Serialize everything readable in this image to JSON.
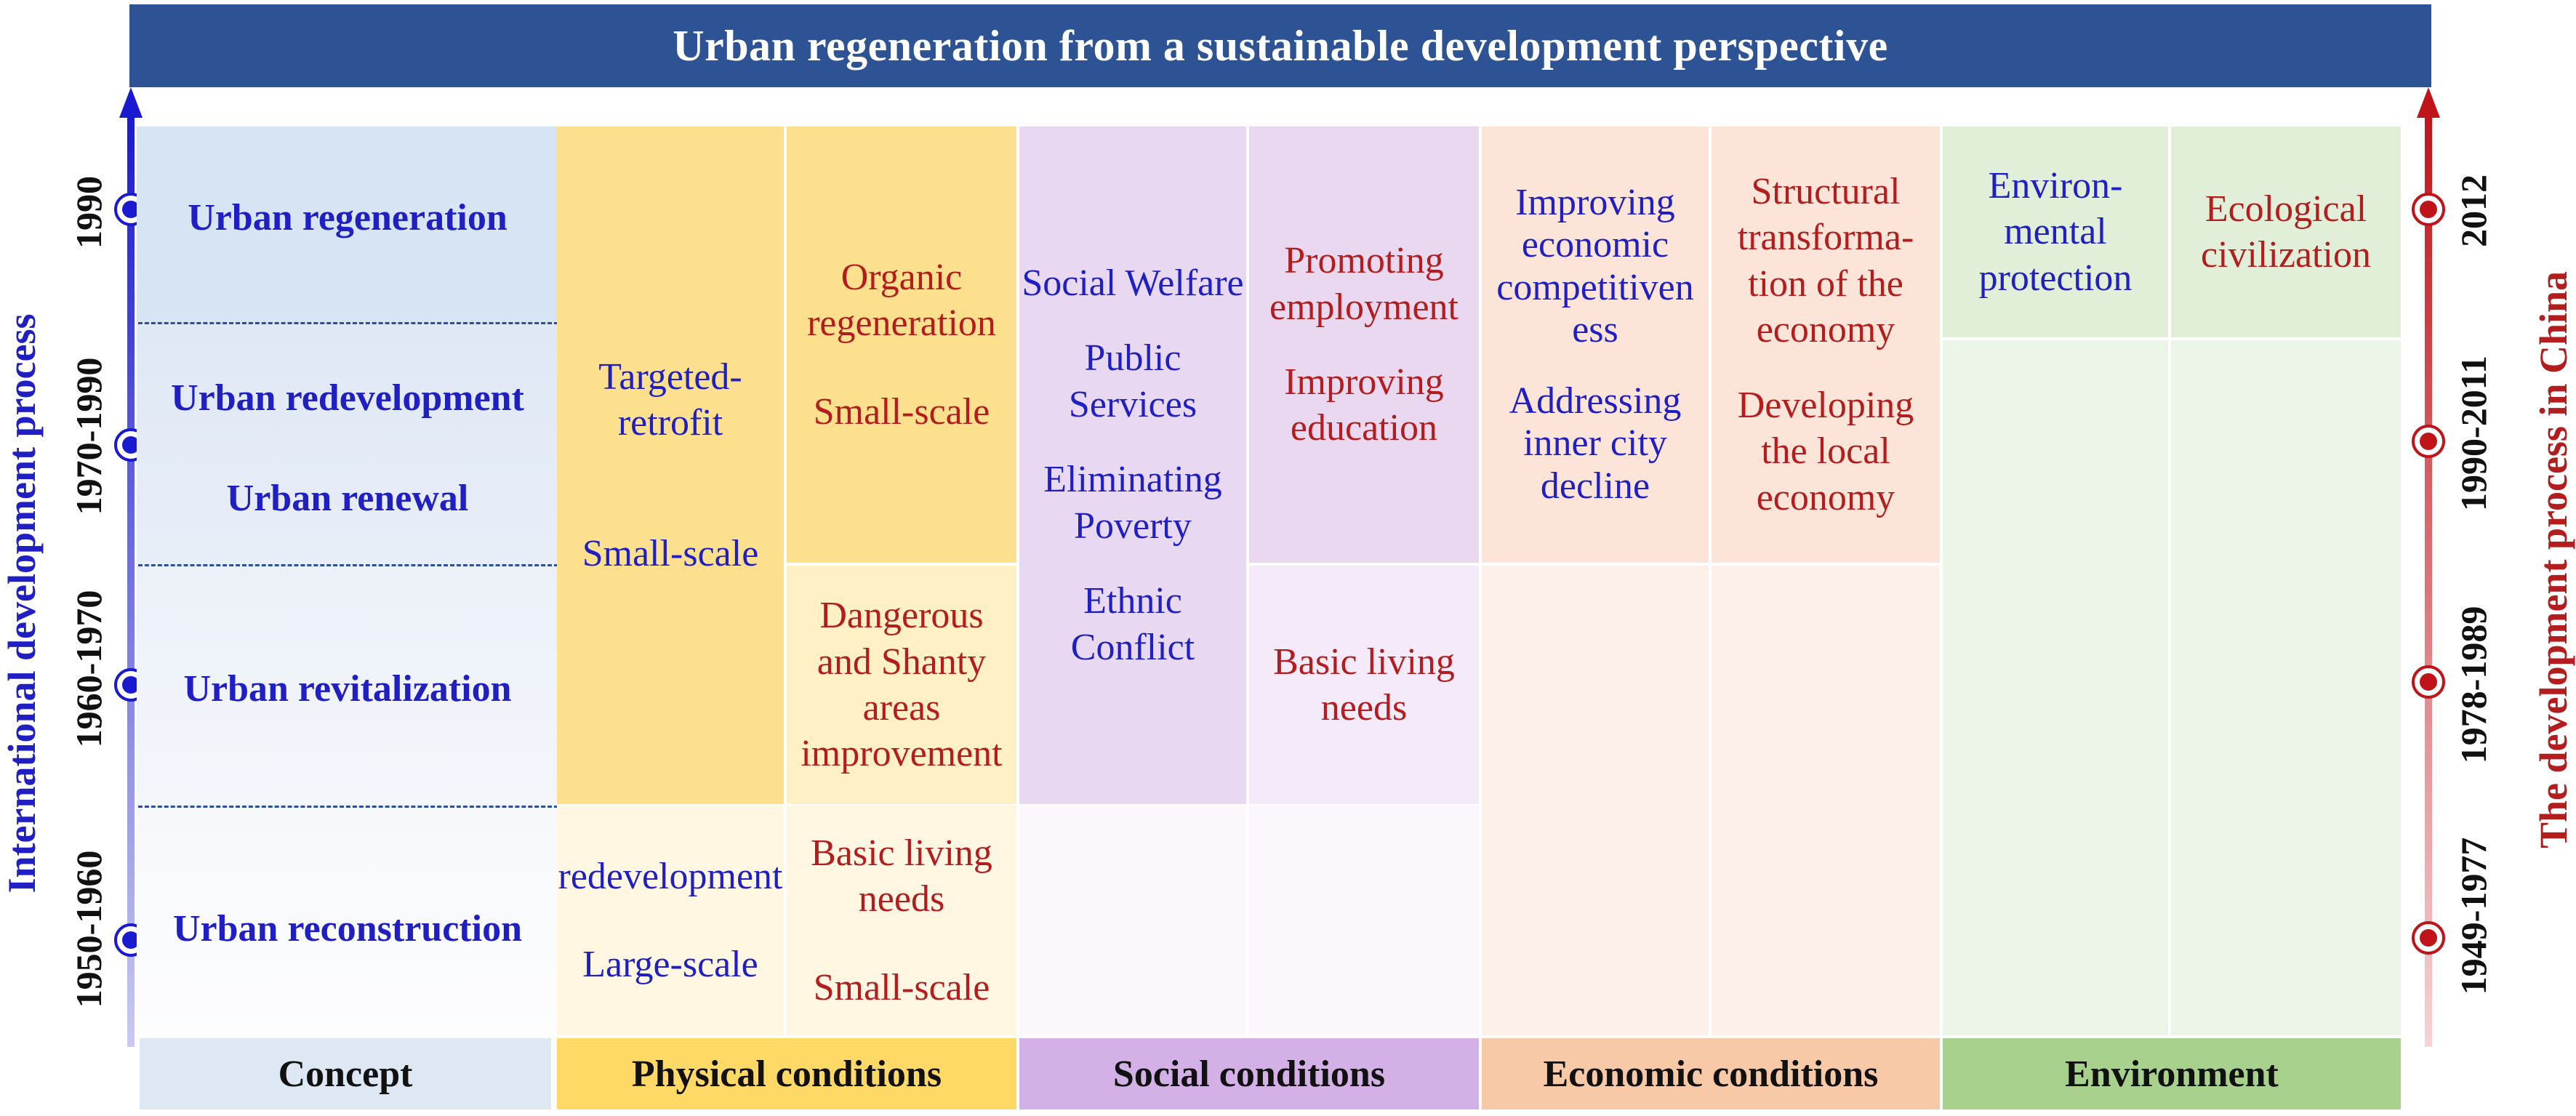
{
  "title": "Urban regeneration from a sustainable development perspective",
  "left_axis": {
    "title": "International development process",
    "periods": [
      "1990",
      "1970-1990",
      "1960-1970",
      "1950-1960"
    ]
  },
  "right_axis": {
    "title": "The development  process in China",
    "periods": [
      "2012",
      "1990-2011",
      "1978-1989",
      "1949-1977"
    ]
  },
  "concept": {
    "urban_regeneration": "Urban regeneration",
    "urban_redevelopment": "Urban redevelopment",
    "urban_renewal": "Urban renewal",
    "urban_revitalization": "Urban revitalization",
    "urban_reconstruction": "Urban reconstruction"
  },
  "physical": {
    "a_targeted_1": "Targeted-",
    "a_targeted_2": "retrofit",
    "a_small": "Small-scale",
    "a_redevelopment": "redevelopment",
    "a_large": "Large-scale",
    "b_organic_1": "Organic",
    "b_organic_2": "regeneration",
    "b_small": "Small-scale",
    "b_dangerous_1": "Dangerous",
    "b_dangerous_2": "and Shanty",
    "b_dangerous_3": "areas",
    "b_dangerous_4": "improvement",
    "b_basic_1": "Basic living",
    "b_basic_2": "needs",
    "b_small2": "Small-scale"
  },
  "social": {
    "a_welfare": "Social Welfare",
    "a_public_1": "Public",
    "a_public_2": "Services",
    "a_poverty_1": "Eliminating",
    "a_poverty_2": "Poverty",
    "a_ethnic_1": "Ethnic",
    "a_ethnic_2": "Conflict",
    "b_employment_1": "Promoting",
    "b_employment_2": "employment",
    "b_education_1": "Improving",
    "b_education_2": "education",
    "b_basic_1": "Basic living",
    "b_basic_2": "needs"
  },
  "economic": {
    "a_comp_1": "Improving",
    "a_comp_2": "economic",
    "a_comp_3": "competitiven",
    "a_comp_4": "ess",
    "a_decline_1": "Addressing",
    "a_decline_2": "inner city",
    "a_decline_3": "decline",
    "b_struct_1": "Structural",
    "b_struct_2": "transforma-",
    "b_struct_3": "tion of the",
    "b_struct_4": "economy",
    "b_local_1": "Developing",
    "b_local_2": "the local",
    "b_local_3": "economy"
  },
  "environment": {
    "a_1": "Environ-",
    "a_2": "mental",
    "a_3": "protection",
    "b_1": "Ecological",
    "b_2": "civilization"
  },
  "footer": {
    "concept": "Concept",
    "physical": "Physical conditions",
    "social": "Social conditions",
    "economic": "Economic conditions",
    "environment": "Environment"
  },
  "colors": {
    "banner": "#2d5394",
    "international_blue": "#1f1fc4",
    "china_red": "#b31d1d",
    "concept_bg": "#dde8f4",
    "physical_bg": "#fde08a",
    "social_bg": "#ead8f1",
    "economic_bg": "#fce5d7",
    "environment_bg": "#e2efd8"
  }
}
